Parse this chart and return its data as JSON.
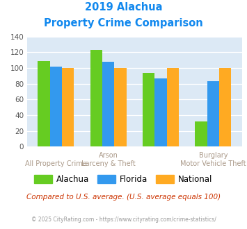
{
  "title_line1": "2019 Alachua",
  "title_line2": "Property Crime Comparison",
  "groups": [
    {
      "name": "Alachua",
      "color": "#66cc22",
      "values": [
        109,
        123,
        94,
        32
      ]
    },
    {
      "name": "Florida",
      "color": "#3399ee",
      "values": [
        102,
        108,
        87,
        83
      ]
    },
    {
      "name": "National",
      "color": "#ffaa22",
      "values": [
        100,
        100,
        100,
        100
      ]
    }
  ],
  "top_labels": [
    "",
    "Arson",
    "",
    "Burglary"
  ],
  "bottom_labels": [
    "All Property Crime",
    "Larceny & Theft",
    "",
    "Motor Vehicle Theft"
  ],
  "ylim": [
    0,
    140
  ],
  "yticks": [
    0,
    20,
    40,
    60,
    80,
    100,
    120,
    140
  ],
  "bg_color": "#dce9f5",
  "title_color": "#1188ee",
  "label_color": "#aa9988",
  "footer_text": "Compared to U.S. average. (U.S. average equals 100)",
  "footer_color": "#cc3300",
  "credit_text": "© 2025 CityRating.com - https://www.cityrating.com/crime-statistics/",
  "credit_color": "#999999",
  "bar_width": 0.23
}
